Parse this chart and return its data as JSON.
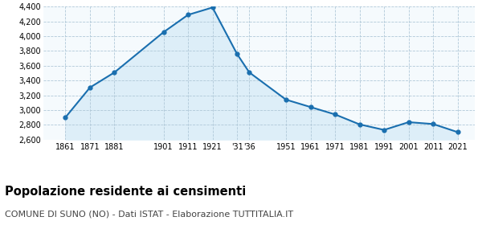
{
  "years": [
    1861,
    1871,
    1881,
    1901,
    1911,
    1921,
    1931,
    1936,
    1951,
    1961,
    1971,
    1981,
    1991,
    2001,
    2011,
    2021
  ],
  "population": [
    2900,
    3305,
    3510,
    4055,
    4290,
    4390,
    3760,
    3510,
    3140,
    3040,
    2940,
    2805,
    2730,
    2835,
    2810,
    2700
  ],
  "x_tick_positions": [
    1861,
    1871,
    1881,
    1901,
    1911,
    1921,
    1931,
    1936,
    1951,
    1961,
    1971,
    1981,
    1991,
    2001,
    2011,
    2021
  ],
  "x_tick_labels": [
    "1861",
    "1871",
    "1881",
    "1901",
    "1911",
    "1921",
    "'31",
    "'36",
    "1951",
    "1961",
    "1971",
    "1981",
    "1991",
    "2001",
    "2011",
    "2021"
  ],
  "ylim": [
    2600,
    4400
  ],
  "yticks": [
    2600,
    2800,
    3000,
    3200,
    3400,
    3600,
    3800,
    4000,
    4200,
    4400
  ],
  "line_color": "#1a6faf",
  "fill_color": "#ddeef8",
  "marker_color": "#1a6faf",
  "grid_color": "#b0c8d8",
  "bg_color": "#ffffff",
  "plot_bg_color": "#f5fafd",
  "title": "Popolazione residente ai censimenti",
  "subtitle": "COMUNE DI SUNO (NO) - Dati ISTAT - Elaborazione TUTTITALIA.IT",
  "title_fontsize": 10.5,
  "subtitle_fontsize": 8,
  "xlim_left": 1852,
  "xlim_right": 2028
}
